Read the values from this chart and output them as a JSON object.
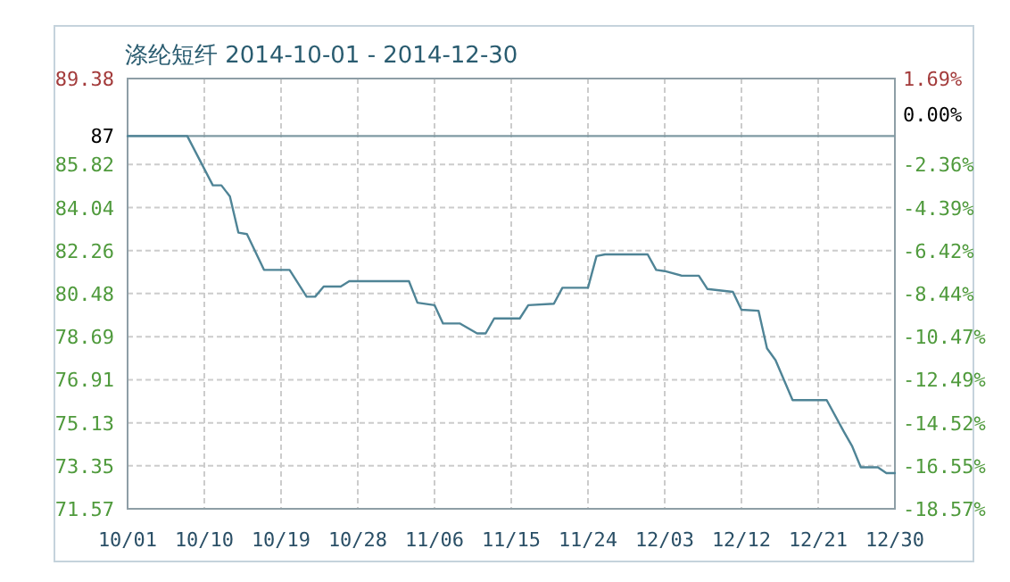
{
  "chart_data": {
    "type": "line",
    "title": "涤纶短纤 2014-10-01 - 2014-12-30",
    "x": [
      "2014-10-01",
      "2014-10-08",
      "2014-10-11",
      "2014-10-12",
      "2014-10-13",
      "2014-10-14",
      "2014-10-15",
      "2014-10-17",
      "2014-10-20",
      "2014-10-22",
      "2014-10-23",
      "2014-10-24",
      "2014-10-26",
      "2014-10-27",
      "2014-11-03",
      "2014-11-04",
      "2014-11-06",
      "2014-11-07",
      "2014-11-09",
      "2014-11-11",
      "2014-11-12",
      "2014-11-13",
      "2014-11-16",
      "2014-11-17",
      "2014-11-20",
      "2014-11-21",
      "2014-11-24",
      "2014-11-25",
      "2014-11-26",
      "2014-12-01",
      "2014-12-02",
      "2014-12-03",
      "2014-12-05",
      "2014-12-07",
      "2014-12-08",
      "2014-12-11",
      "2014-12-12",
      "2014-12-14",
      "2014-12-15",
      "2014-12-16",
      "2014-12-18",
      "2014-12-22",
      "2014-12-24",
      "2014-12-25",
      "2014-12-26",
      "2014-12-28",
      "2014-12-29",
      "2014-12-30"
    ],
    "series": [
      {
        "color": "#4f8496",
        "values": [
          87,
          87,
          84.96,
          84.96,
          84.5,
          83.0,
          82.94,
          81.46,
          81.46,
          80.35,
          80.35,
          80.77,
          80.77,
          80.99,
          80.99,
          80.1,
          80.0,
          79.24,
          79.24,
          78.83,
          78.83,
          79.45,
          79.45,
          80.0,
          80.06,
          80.72,
          80.72,
          82.03,
          82.1,
          82.1,
          81.46,
          81.41,
          81.22,
          81.22,
          80.67,
          80.55,
          79.81,
          79.77,
          78.21,
          77.72,
          76.07,
          76.07,
          74.77,
          74.15,
          73.29,
          73.29,
          73.05,
          73.05
        ]
      }
    ],
    "xlim": [
      "2014-10-01",
      "2014-12-30"
    ],
    "xticks": [
      {
        "value": "2014-10-01",
        "label": "10/01"
      },
      {
        "value": "2014-10-10",
        "label": "10/10"
      },
      {
        "value": "2014-10-19",
        "label": "10/19"
      },
      {
        "value": "2014-10-28",
        "label": "10/28"
      },
      {
        "value": "2014-11-06",
        "label": "11/06"
      },
      {
        "value": "2014-11-15",
        "label": "11/15"
      },
      {
        "value": "2014-11-24",
        "label": "11/24"
      },
      {
        "value": "2014-12-03",
        "label": "12/03"
      },
      {
        "value": "2014-12-12",
        "label": "12/12"
      },
      {
        "value": "2014-12-21",
        "label": "12/21"
      },
      {
        "value": "2014-12-30",
        "label": "12/30"
      }
    ],
    "ylim": [
      71.57,
      89.38
    ],
    "yticks": [
      71.57,
      73.35,
      75.13,
      76.91,
      78.69,
      80.48,
      82.26,
      84.04,
      85.82,
      89.38
    ],
    "y2lim": [
      -18.57,
      1.69
    ],
    "y2ticks": [
      {
        "value": -18.57,
        "label": "-18.57%"
      },
      {
        "value": -16.55,
        "label": "-16.55%"
      },
      {
        "value": -14.52,
        "label": "-14.52%"
      },
      {
        "value": -12.49,
        "label": "-12.49%"
      },
      {
        "value": -10.47,
        "label": "-10.47%"
      },
      {
        "value": -8.44,
        "label": "-8.44%"
      },
      {
        "value": -6.42,
        "label": "-6.42%"
      },
      {
        "value": -4.39,
        "label": "-4.39%"
      },
      {
        "value": -2.36,
        "label": "-2.36%"
      },
      {
        "value": 0,
        "label": "0.00%"
      },
      {
        "value": 1.69,
        "label": "1.69%"
      }
    ],
    "ref_lines": [
      {
        "axis": "y",
        "value": 87,
        "label": "87",
        "color": "#7f9aa3"
      }
    ],
    "grid": true
  }
}
